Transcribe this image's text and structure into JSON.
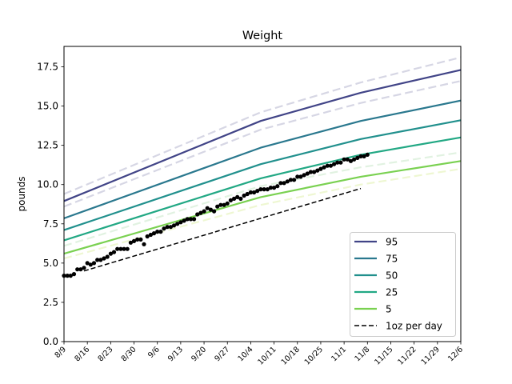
{
  "chart_data": {
    "type": "line",
    "title": "Weight",
    "ylabel": "pounds",
    "xlabel": "",
    "ylim": [
      0,
      18.8
    ],
    "xlim": [
      "2021-08-09",
      "2021-12-06"
    ],
    "y_ticks": [
      "0.0",
      "2.5",
      "5.0",
      "7.5",
      "10.0",
      "12.5",
      "15.0",
      "17.5"
    ],
    "x_ticks": [
      "8/9",
      "8/16",
      "8/23",
      "8/30",
      "9/6",
      "9/13",
      "9/20",
      "9/27",
      "10/4",
      "10/11",
      "10/18",
      "10/25",
      "11/1",
      "11/8",
      "11/15",
      "11/22",
      "11/29",
      "12/6"
    ],
    "x_tick_dates": [
      "2021-08-09",
      "2021-08-16",
      "2021-08-23",
      "2021-08-30",
      "2021-09-06",
      "2021-09-13",
      "2021-09-20",
      "2021-09-27",
      "2021-10-04",
      "2021-10-11",
      "2021-10-18",
      "2021-10-25",
      "2021-11-01",
      "2021-11-08",
      "2021-11-15",
      "2021-11-22",
      "2021-11-29",
      "2021-12-06"
    ],
    "grid": false,
    "legend_position": "lower-right",
    "series": [
      {
        "name": "95",
        "color": "#414487",
        "style": "solid",
        "x": [
          "2021-08-09",
          "2021-10-07",
          "2021-11-06",
          "2021-12-06"
        ],
        "y": [
          8.95,
          14.05,
          15.85,
          17.3
        ]
      },
      {
        "name": "75",
        "color": "#2a788e",
        "style": "solid",
        "x": [
          "2021-08-09",
          "2021-10-07",
          "2021-11-06",
          "2021-12-06"
        ],
        "y": [
          7.85,
          12.35,
          14.05,
          15.35
        ]
      },
      {
        "name": "50",
        "color": "#21908d",
        "style": "solid",
        "x": [
          "2021-08-09",
          "2021-10-07",
          "2021-11-06",
          "2021-12-06"
        ],
        "y": [
          7.1,
          11.3,
          12.9,
          14.1
        ]
      },
      {
        "name": "25",
        "color": "#22a884",
        "style": "solid",
        "x": [
          "2021-08-09",
          "2021-10-07",
          "2021-11-06",
          "2021-12-06"
        ],
        "y": [
          6.45,
          10.4,
          11.9,
          13.0
        ]
      },
      {
        "name": "5",
        "color": "#7ad151",
        "style": "solid",
        "x": [
          "2021-08-09",
          "2021-10-07",
          "2021-11-06",
          "2021-12-06"
        ],
        "y": [
          5.6,
          9.2,
          10.5,
          11.5
        ]
      },
      {
        "name": "",
        "color": "#d6d6e4",
        "style": "dashed",
        "x": [
          "2021-08-09",
          "2021-10-07",
          "2021-11-06",
          "2021-12-06"
        ],
        "y": [
          9.4,
          14.6,
          16.5,
          18.1
        ]
      },
      {
        "name": "",
        "color": "#d6d6e4",
        "style": "dashed",
        "x": [
          "2021-08-09",
          "2021-10-07",
          "2021-11-06",
          "2021-12-06"
        ],
        "y": [
          8.6,
          13.5,
          15.2,
          16.6
        ]
      },
      {
        "name": "",
        "color": "#e1f2e1",
        "style": "dashed",
        "x": [
          "2021-08-09",
          "2021-10-07",
          "2021-11-06",
          "2021-12-06"
        ],
        "y": [
          6.1,
          9.9,
          11.1,
          12.05
        ]
      },
      {
        "name": "",
        "color": "#eef7d2",
        "style": "dashed",
        "x": [
          "2021-08-09",
          "2021-10-07",
          "2021-11-06",
          "2021-12-06"
        ],
        "y": [
          5.3,
          8.7,
          10.0,
          11.0
        ]
      },
      {
        "name": "1oz per day",
        "color": "#000000",
        "style": "dashed",
        "x": [
          "2021-08-15",
          "2021-11-06"
        ],
        "y": [
          4.5,
          9.75
        ]
      }
    ],
    "points": {
      "color": "#000000",
      "x": [
        "2021-08-09",
        "2021-08-10",
        "2021-08-11",
        "2021-08-12",
        "2021-08-13",
        "2021-08-14",
        "2021-08-15",
        "2021-08-16",
        "2021-08-17",
        "2021-08-18",
        "2021-08-19",
        "2021-08-20",
        "2021-08-21",
        "2021-08-22",
        "2021-08-23",
        "2021-08-24",
        "2021-08-25",
        "2021-08-26",
        "2021-08-27",
        "2021-08-28",
        "2021-08-29",
        "2021-08-30",
        "2021-08-31",
        "2021-09-01",
        "2021-09-02",
        "2021-09-03",
        "2021-09-04",
        "2021-09-05",
        "2021-09-06",
        "2021-09-07",
        "2021-09-08",
        "2021-09-09",
        "2021-09-10",
        "2021-09-11",
        "2021-09-12",
        "2021-09-13",
        "2021-09-14",
        "2021-09-15",
        "2021-09-16",
        "2021-09-17",
        "2021-09-18",
        "2021-09-19",
        "2021-09-20",
        "2021-09-21",
        "2021-09-22",
        "2021-09-23",
        "2021-09-24",
        "2021-09-25",
        "2021-09-26",
        "2021-09-27",
        "2021-09-28",
        "2021-09-29",
        "2021-09-30",
        "2021-10-01",
        "2021-10-02",
        "2021-10-03",
        "2021-10-04",
        "2021-10-05",
        "2021-10-06",
        "2021-10-07",
        "2021-10-08",
        "2021-10-09",
        "2021-10-10",
        "2021-10-11",
        "2021-10-12",
        "2021-10-13",
        "2021-10-14",
        "2021-10-15",
        "2021-10-16",
        "2021-10-17",
        "2021-10-18",
        "2021-10-19",
        "2021-10-20",
        "2021-10-21",
        "2021-10-22",
        "2021-10-23",
        "2021-10-24",
        "2021-10-25",
        "2021-10-26",
        "2021-10-27",
        "2021-10-28",
        "2021-10-29",
        "2021-10-30",
        "2021-10-31",
        "2021-11-01",
        "2021-11-02",
        "2021-11-03",
        "2021-11-04",
        "2021-11-05",
        "2021-11-06",
        "2021-11-07",
        "2021-11-08"
      ],
      "y": [
        4.2,
        4.2,
        4.2,
        4.3,
        4.6,
        4.6,
        4.7,
        5.0,
        4.9,
        5.0,
        5.2,
        5.2,
        5.3,
        5.4,
        5.6,
        5.7,
        5.9,
        5.9,
        5.9,
        5.9,
        6.3,
        6.4,
        6.5,
        6.5,
        6.2,
        6.7,
        6.8,
        6.9,
        7.0,
        7.0,
        7.2,
        7.3,
        7.3,
        7.4,
        7.5,
        7.6,
        7.7,
        7.8,
        7.8,
        7.8,
        8.1,
        8.2,
        8.3,
        8.5,
        8.4,
        8.3,
        8.6,
        8.7,
        8.7,
        8.8,
        9.0,
        9.1,
        9.2,
        9.1,
        9.3,
        9.4,
        9.5,
        9.5,
        9.6,
        9.7,
        9.7,
        9.7,
        9.8,
        9.8,
        9.9,
        10.1,
        10.1,
        10.2,
        10.3,
        10.3,
        10.5,
        10.5,
        10.6,
        10.7,
        10.8,
        10.8,
        10.9,
        11.0,
        11.1,
        11.2,
        11.2,
        11.3,
        11.4,
        11.4,
        11.6,
        11.6,
        11.5,
        11.6,
        11.7,
        11.8,
        11.8,
        11.9
      ]
    },
    "legend": [
      "95",
      "75",
      "50",
      "25",
      "5",
      "1oz per day"
    ]
  }
}
